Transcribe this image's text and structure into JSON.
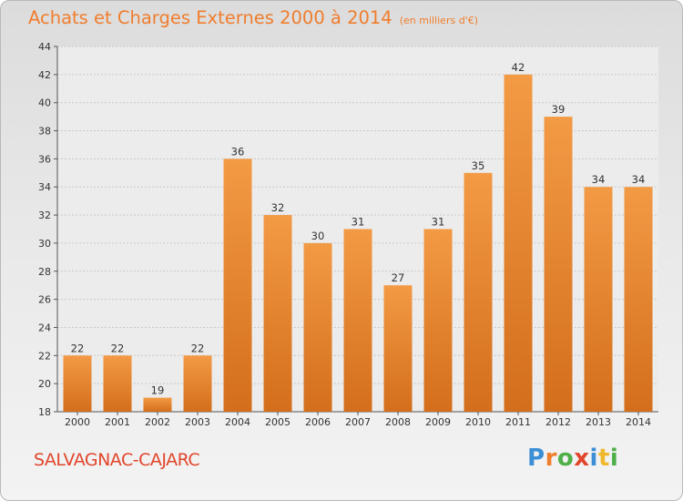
{
  "title": "Achats et Charges Externes 2000 à 2014",
  "subtitle": "(en milliers d'€)",
  "place": "SALVAGNAC-CAJARC",
  "logo": {
    "letters": [
      "P",
      "r",
      "o",
      "x",
      "i",
      "t",
      "i"
    ],
    "colors": [
      "#3c8fd6",
      "#f07d2c",
      "#4fb04a",
      "#e1462c",
      "#3c8fd6",
      "#f0b92c",
      "#4fb04a"
    ]
  },
  "colors": {
    "bar": "#f39a45",
    "bar_dark": "#d36e1c",
    "accent": "#f07d2c"
  },
  "chart_data": {
    "type": "bar",
    "categories": [
      "2000",
      "2001",
      "2002",
      "2003",
      "2004",
      "2005",
      "2006",
      "2007",
      "2008",
      "2009",
      "2010",
      "2011",
      "2012",
      "2013",
      "2014"
    ],
    "values": [
      22,
      22,
      19,
      22,
      36,
      32,
      30,
      31,
      27,
      31,
      35,
      42,
      39,
      34,
      34
    ],
    "ylim": [
      18,
      44
    ],
    "yticks": [
      18,
      20,
      22,
      24,
      26,
      28,
      30,
      32,
      34,
      36,
      38,
      40,
      42,
      44
    ],
    "grid": true
  }
}
